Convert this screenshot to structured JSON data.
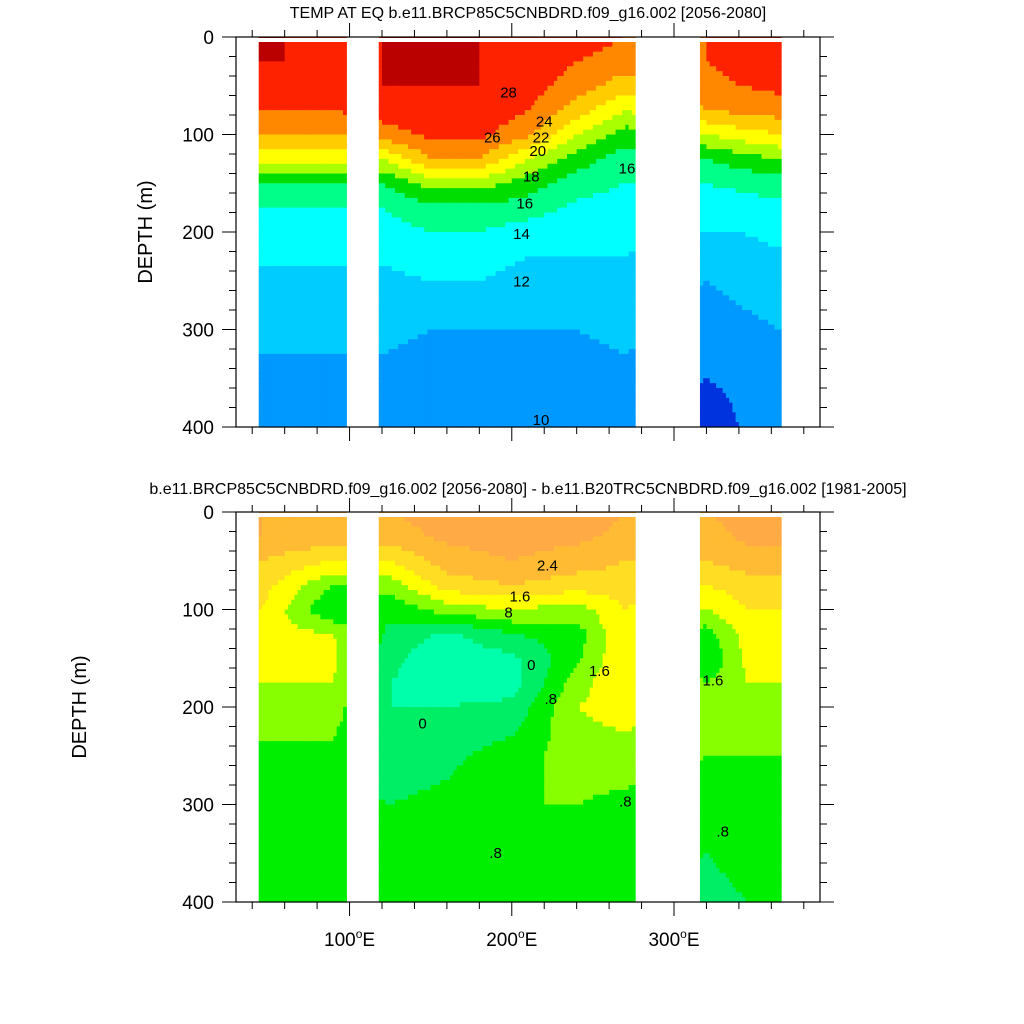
{
  "chart_data": [
    {
      "type": "heatmap",
      "title": "TEMP AT EQ b.e11.BRCP85C5CNBDRD.f09_g16.002 [2056-2080]",
      "xlabel": "",
      "ylabel": "DEPTH (m)",
      "xlim": [
        30,
        390
      ],
      "ylim": [
        400,
        0
      ],
      "y_reversed": true,
      "x_ticks": [
        100,
        200,
        300
      ],
      "x_tick_labels": [
        "",
        "",
        ""
      ],
      "y_ticks": [
        0,
        100,
        200,
        300,
        400
      ],
      "y_tick_labels": [
        "0",
        "100",
        "200",
        "300",
        "400"
      ],
      "land_gaps": [
        [
          97,
          118
        ],
        [
          275,
          316
        ]
      ],
      "color_scale": [
        {
          "value": 8,
          "color": "#0033dd"
        },
        {
          "value": 10,
          "color": "#0099ff"
        },
        {
          "value": 12,
          "color": "#00ccff"
        },
        {
          "value": 14,
          "color": "#00ffff"
        },
        {
          "value": 16,
          "color": "#00ff88"
        },
        {
          "value": 18,
          "color": "#00dd00"
        },
        {
          "value": 20,
          "color": "#aaff00"
        },
        {
          "value": 22,
          "color": "#ffff00"
        },
        {
          "value": 24,
          "color": "#ffcc00"
        },
        {
          "value": 26,
          "color": "#ff8800"
        },
        {
          "value": 28,
          "color": "#ff2200"
        },
        {
          "value": 30,
          "color": "#bb0000"
        }
      ],
      "contour_labels": [
        {
          "text": "28",
          "x": 198,
          "y": 62
        },
        {
          "text": "26",
          "x": 188,
          "y": 108
        },
        {
          "text": "24",
          "x": 220,
          "y": 92
        },
        {
          "text": "22",
          "x": 218,
          "y": 108
        },
        {
          "text": "20",
          "x": 216,
          "y": 122
        },
        {
          "text": "18",
          "x": 212,
          "y": 148
        },
        {
          "text": "16",
          "x": 208,
          "y": 176
        },
        {
          "text": "14",
          "x": 206,
          "y": 207
        },
        {
          "text": "12",
          "x": 206,
          "y": 256
        },
        {
          "text": "10",
          "x": 218,
          "y": 398
        },
        {
          "text": "16",
          "x": 271,
          "y": 140
        }
      ],
      "depth_axis": [
        0,
        25,
        50,
        75,
        100,
        125,
        150,
        175,
        200,
        250,
        300,
        350,
        400
      ],
      "profiles": [
        {
          "lon": 45,
          "t": [
            30,
            30,
            29.5,
            28,
            26,
            23,
            18,
            16,
            15,
            13.5,
            12.5,
            11.5,
            11
          ]
        },
        {
          "lon": 60,
          "t": [
            30,
            30,
            29.5,
            28,
            26,
            23,
            18,
            16,
            15,
            13.5,
            12.5,
            11.5,
            11
          ]
        },
        {
          "lon": 90,
          "t": [
            29.5,
            29.5,
            29,
            28,
            26,
            23,
            18,
            16,
            15,
            13.5,
            12.5,
            11.5,
            11
          ]
        },
        {
          "lon": 120,
          "t": [
            30,
            30,
            30,
            29,
            27,
            22,
            18,
            16,
            15,
            13.5,
            12.5,
            11.5,
            11
          ]
        },
        {
          "lon": 150,
          "t": [
            30,
            30,
            30,
            29.5,
            28.5,
            26,
            21,
            17.5,
            16,
            14,
            12,
            11,
            10.5
          ]
        },
        {
          "lon": 180,
          "t": [
            30,
            30,
            30,
            29.5,
            28.5,
            26,
            21,
            17.5,
            16,
            14,
            12,
            11,
            10.5
          ]
        },
        {
          "lon": 210,
          "t": [
            30,
            29.5,
            29,
            28,
            26.5,
            22,
            19,
            17,
            15,
            13,
            12,
            10.5,
            10
          ]
        },
        {
          "lon": 240,
          "t": [
            29,
            28,
            27,
            25,
            22,
            19,
            17,
            15.5,
            14.5,
            13.5,
            12,
            11,
            10.5
          ]
        },
        {
          "lon": 270,
          "t": [
            28,
            27,
            25,
            22,
            19,
            17,
            16,
            15,
            14.5,
            13.5,
            12.5,
            11.5,
            11
          ]
        },
        {
          "lon": 320,
          "t": [
            28,
            28,
            27.5,
            26,
            22,
            18,
            16,
            15,
            14,
            12,
            11,
            10,
            8.5
          ]
        },
        {
          "lon": 340,
          "t": [
            29,
            28.5,
            28,
            26.5,
            23,
            19,
            16.5,
            15,
            14,
            12.5,
            11.5,
            10.5,
            10
          ]
        },
        {
          "lon": 365,
          "t": [
            29.5,
            29,
            28.5,
            27,
            24,
            20,
            17,
            15.5,
            14.5,
            13,
            12,
            11,
            10.5
          ]
        }
      ]
    },
    {
      "type": "heatmap",
      "title": "b.e11.BRCP85C5CNBDRD.f09_g16.002 [2056-2080] - b.e11.B20TRC5CNBDRD.f09_g16.002 [1981-2005]",
      "xlabel": "",
      "ylabel": "DEPTH (m)",
      "xlim": [
        30,
        390
      ],
      "ylim": [
        400,
        0
      ],
      "y_reversed": true,
      "x_ticks": [
        100,
        200,
        300
      ],
      "x_tick_labels": [
        "100°E",
        "200°E",
        "300°E"
      ],
      "y_ticks": [
        0,
        100,
        200,
        300,
        400
      ],
      "y_tick_labels": [
        "0",
        "100",
        "200",
        "300",
        "400"
      ],
      "land_gaps": [
        [
          97,
          118
        ],
        [
          275,
          316
        ]
      ],
      "color_scale": [
        {
          "value": -0.4,
          "color": "#00ffaa"
        },
        {
          "value": 0,
          "color": "#00ee66"
        },
        {
          "value": 0.4,
          "color": "#00ee00"
        },
        {
          "value": 0.8,
          "color": "#88ff00"
        },
        {
          "value": 1.2,
          "color": "#ffff00"
        },
        {
          "value": 1.6,
          "color": "#ffdd22"
        },
        {
          "value": 2.0,
          "color": "#ffbb33"
        },
        {
          "value": 2.4,
          "color": "#ffaa44"
        },
        {
          "value": 2.8,
          "color": "#ff8833"
        }
      ],
      "contour_labels": [
        {
          "text": "2.4",
          "x": 222,
          "y": 60
        },
        {
          "text": "1.6",
          "x": 205,
          "y": 92
        },
        {
          "text": "8",
          "x": 198,
          "y": 108
        },
        {
          "text": "0",
          "x": 212,
          "y": 162
        },
        {
          "text": ".8",
          "x": 224,
          "y": 197
        },
        {
          "text": "0",
          "x": 145,
          "y": 222
        },
        {
          "text": "1.6",
          "x": 254,
          "y": 168
        },
        {
          "text": "1.6",
          "x": 324,
          "y": 178
        },
        {
          "text": ".8",
          "x": 270,
          "y": 302
        },
        {
          "text": ".8",
          "x": 190,
          "y": 355
        },
        {
          "text": ".8",
          "x": 330,
          "y": 333
        }
      ],
      "depth_axis": [
        0,
        25,
        50,
        75,
        100,
        125,
        150,
        175,
        200,
        250,
        300,
        350,
        400
      ],
      "profiles": [
        {
          "lon": 45,
          "t": [
            2.4,
            2.4,
            2.0,
            1.8,
            1.6,
            1.4,
            1.3,
            1.2,
            1.0,
            0.7,
            0.5,
            0.5,
            0.5
          ]
        },
        {
          "lon": 90,
          "t": [
            2.4,
            2.2,
            1.6,
            0.8,
            0.4,
            1.2,
            1.3,
            1.2,
            1.0,
            0.7,
            0.5,
            0.5,
            0.5
          ]
        },
        {
          "lon": 125,
          "t": [
            2.4,
            2.2,
            1.6,
            1.0,
            0.5,
            0.3,
            0.1,
            0.0,
            0.0,
            0.2,
            0.4,
            0.4,
            0.5
          ]
        },
        {
          "lon": 160,
          "t": [
            2.6,
            2.5,
            2.2,
            1.8,
            1.0,
            -0.1,
            -0.3,
            -0.2,
            0.0,
            0.3,
            0.5,
            0.7,
            0.8
          ]
        },
        {
          "lon": 200,
          "t": [
            2.8,
            2.6,
            2.4,
            2.0,
            1.2,
            0.4,
            -0.1,
            -0.2,
            0.1,
            0.6,
            0.8,
            0.6,
            0.4
          ]
        },
        {
          "lon": 240,
          "t": [
            2.6,
            2.5,
            2.2,
            1.8,
            1.0,
            0.6,
            0.7,
            1.0,
            1.2,
            1.0,
            0.8,
            0.7,
            0.6
          ]
        },
        {
          "lon": 270,
          "t": [
            2.4,
            2.3,
            2.0,
            1.8,
            1.6,
            1.6,
            1.6,
            1.6,
            1.4,
            1.0,
            0.7,
            0.6,
            0.6
          ]
        },
        {
          "lon": 320,
          "t": [
            2.4,
            2.2,
            2.0,
            1.6,
            1.2,
            0.6,
            0.4,
            0.8,
            1.0,
            0.8,
            0.6,
            0.4,
            0.3
          ]
        },
        {
          "lon": 345,
          "t": [
            2.6,
            2.5,
            2.2,
            1.8,
            1.6,
            1.4,
            1.3,
            1.2,
            1.0,
            0.8,
            0.6,
            0.5,
            0.4
          ]
        },
        {
          "lon": 365,
          "t": [
            2.6,
            2.5,
            2.2,
            1.8,
            1.6,
            1.4,
            1.3,
            1.2,
            1.0,
            0.8,
            0.6,
            0.5,
            0.4
          ]
        }
      ]
    }
  ]
}
